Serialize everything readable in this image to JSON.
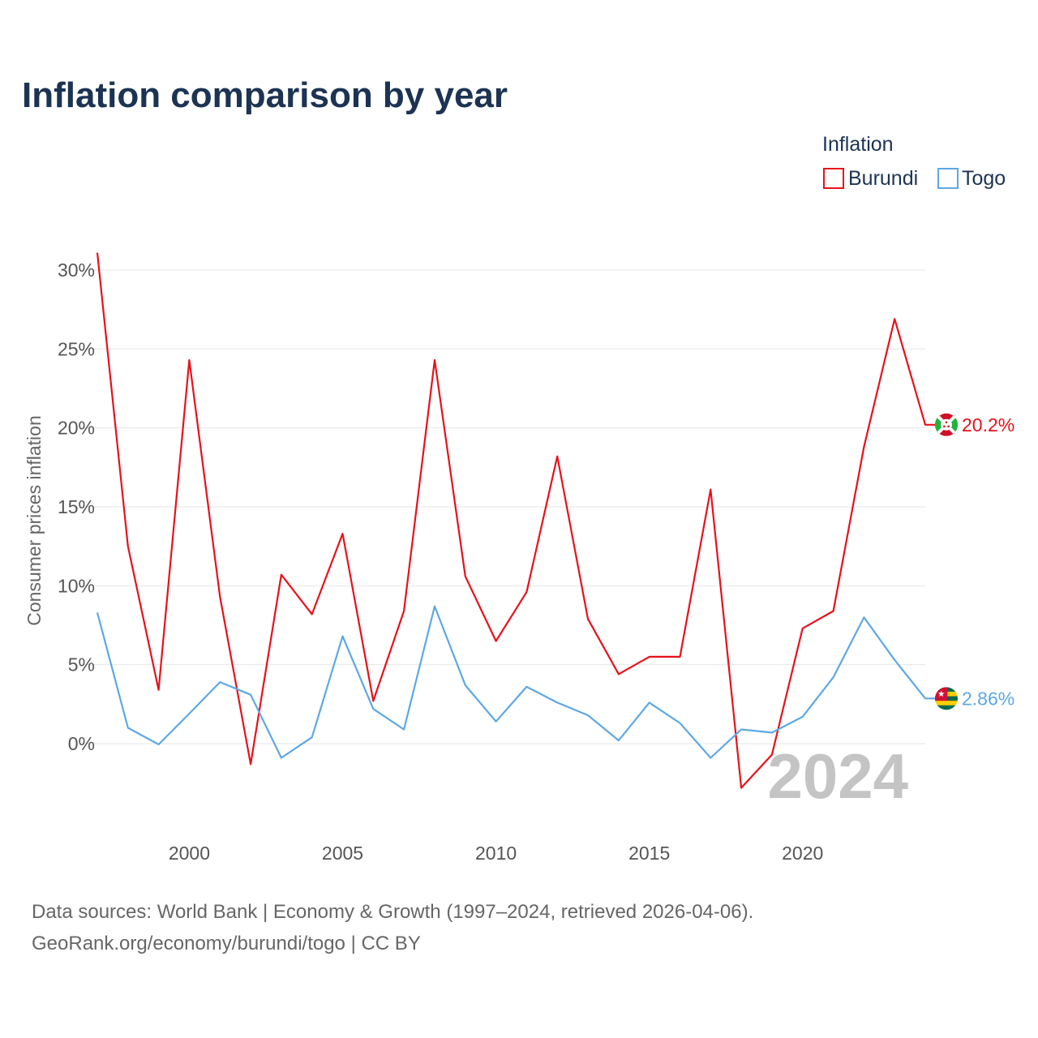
{
  "title": "Inflation comparison by year",
  "legend": {
    "title": "Inflation",
    "items": [
      {
        "label": "Burundi",
        "color": "#e8111b"
      },
      {
        "label": "Togo",
        "color": "#5ea8e3"
      }
    ]
  },
  "y_axis_label": "Consumer prices inflation",
  "year_watermark": "2024",
  "source_line1": "Data sources: World Bank | Economy & Growth (1997–2024, retrieved 2026-04-06).",
  "source_line2": "GeoRank.org/economy/burundi/togo | CC BY",
  "chart_data": {
    "type": "line",
    "title": "Inflation comparison by year",
    "xlabel": "",
    "ylabel": "Consumer prices inflation",
    "xlim": [
      1997,
      2024
    ],
    "ylim": [
      -5,
      31
    ],
    "x_ticks": [
      2000,
      2005,
      2010,
      2015,
      2020
    ],
    "x_tick_labels": [
      "2000",
      "2005",
      "2010",
      "2015",
      "2020"
    ],
    "y_ticks": [
      0,
      5,
      10,
      15,
      20,
      25,
      30
    ],
    "y_tick_labels": [
      "0%",
      "5%",
      "10%",
      "15%",
      "20%",
      "25%",
      "30%"
    ],
    "grid": true,
    "legend_position": "top-right",
    "x": [
      1997,
      1998,
      1999,
      2000,
      2001,
      2002,
      2003,
      2004,
      2005,
      2006,
      2007,
      2008,
      2009,
      2010,
      2011,
      2012,
      2013,
      2014,
      2015,
      2016,
      2017,
      2018,
      2019,
      2020,
      2021,
      2022,
      2023,
      2024
    ],
    "series": [
      {
        "name": "Burundi",
        "color": "#e8111b",
        "end_label": "20.2%",
        "flag": "burundi-flag",
        "values": [
          31.1,
          12.5,
          3.4,
          24.3,
          9.3,
          -1.3,
          10.7,
          8.2,
          13.3,
          2.7,
          8.4,
          24.3,
          10.6,
          6.5,
          9.6,
          18.2,
          7.9,
          4.4,
          5.5,
          5.5,
          16.1,
          -2.8,
          -0.7,
          7.3,
          8.4,
          18.8,
          26.9,
          20.2
        ]
      },
      {
        "name": "Togo",
        "color": "#5ea8e3",
        "end_label": "2.86%",
        "flag": "togo-flag",
        "values": [
          8.3,
          1.0,
          -0.05,
          1.9,
          3.9,
          3.1,
          -0.9,
          0.4,
          6.8,
          2.2,
          0.9,
          8.7,
          3.7,
          1.4,
          3.6,
          2.6,
          1.8,
          0.2,
          2.6,
          1.3,
          -0.9,
          0.9,
          0.7,
          1.7,
          4.2,
          8.0,
          5.3,
          2.86
        ]
      }
    ]
  }
}
